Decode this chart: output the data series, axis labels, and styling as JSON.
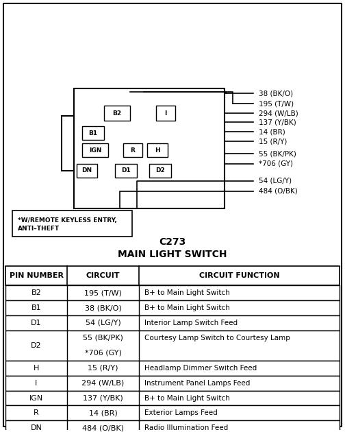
{
  "title_c273": "C273",
  "title_main": "MAIN LIGHT SWITCH",
  "bg_color": "#f0f0f0",
  "border_color": "#000000",
  "table_header": [
    "PIN NUMBER",
    "CIRCUIT",
    "CIRCUIT FUNCTION"
  ],
  "table_rows": [
    [
      "B2",
      "195 (T/W)",
      "B+ to Main Light Switch"
    ],
    [
      "B1",
      "38 (BK/O)",
      "B+ to Main Light Switch"
    ],
    [
      "D1",
      "54 (LG/Y)",
      "Interior Lamp Switch Feed"
    ],
    [
      "D2",
      "55 (BK/PK)",
      "Courtesy Lamp Switch to Courtesy Lamp"
    ],
    [
      "",
      "*706 (GY)",
      ""
    ],
    [
      "H",
      "15 (R/Y)",
      "Headlamp Dimmer Switch Feed"
    ],
    [
      "I",
      "294 (W/LB)",
      "Instrument Panel Lamps Feed"
    ],
    [
      "IGN",
      "137 (Y/BK)",
      "B+ to Main Light Switch"
    ],
    [
      "R",
      "14 (BR)",
      "Exterior Lamps Feed"
    ],
    [
      "DN",
      "484 (O/BK)",
      "Radio Illumination Feed"
    ]
  ],
  "wire_labels_right": [
    "38 (BK/O)",
    "195 (T/W)",
    "294 (W/LB)",
    "137 (Y/BK)",
    "14 (BR)",
    "15 (R/Y)",
    "55 (BK/PK)",
    "*706 (GY)",
    "54 (LG/Y)",
    "484 (O/BK)"
  ],
  "pin_labels": [
    "B2",
    "I",
    "B1",
    "IGN",
    "R",
    "H",
    "DN",
    "D1",
    "D2"
  ],
  "note_text": "*W/REMOTE KEYLESS ENTRY,\nANTI–THEFT"
}
